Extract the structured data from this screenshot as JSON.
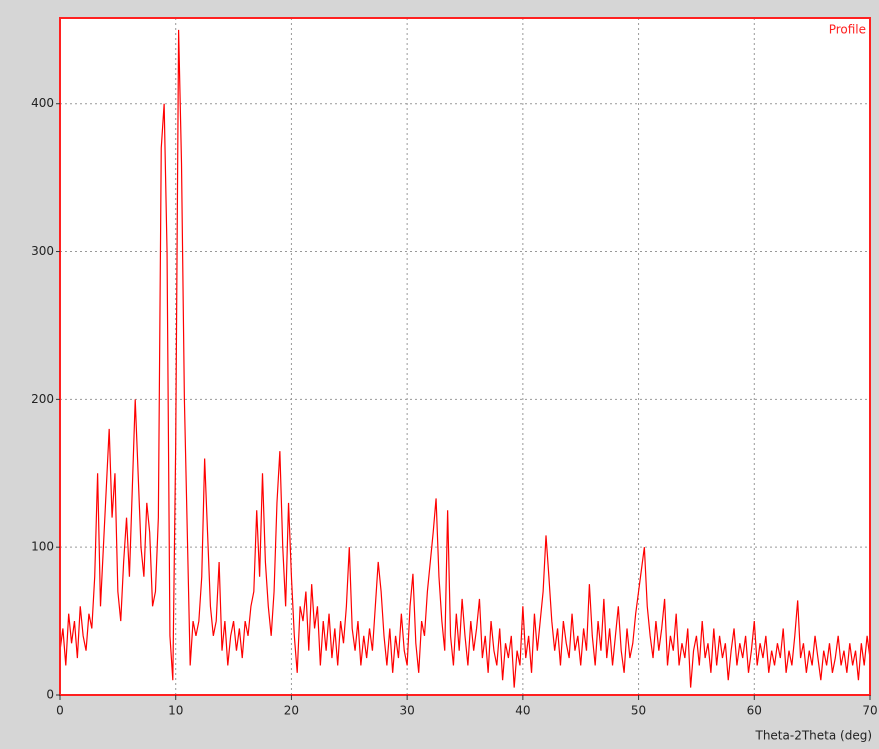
{
  "chart_data": {
    "type": "line",
    "legend_label": "Profile",
    "x_label": "Theta-2Theta (deg)",
    "xlim": [
      0,
      70
    ],
    "ylim": [
      0,
      458
    ],
    "xticks": [
      0,
      10,
      20,
      30,
      40,
      50,
      60,
      70
    ],
    "yticks": [
      0,
      100,
      200,
      300,
      400
    ],
    "grid": true,
    "series": [
      {
        "name": "Profile",
        "color": "#ff0000",
        "x": [
          0,
          0.25,
          0.5,
          0.75,
          1,
          1.25,
          1.5,
          1.75,
          2,
          2.25,
          2.5,
          2.75,
          3,
          3.25,
          3.5,
          3.75,
          4,
          4.25,
          4.5,
          4.75,
          5,
          5.25,
          5.5,
          5.75,
          6,
          6.25,
          6.5,
          6.75,
          7,
          7.25,
          7.5,
          7.75,
          8,
          8.25,
          8.5,
          8.75,
          9,
          9.25,
          9.5,
          9.75,
          10,
          10.25,
          10.5,
          10.75,
          11,
          11.25,
          11.5,
          11.75,
          12,
          12.25,
          12.5,
          12.75,
          13,
          13.25,
          13.5,
          13.75,
          14,
          14.25,
          14.5,
          14.75,
          15,
          15.25,
          15.5,
          15.75,
          16,
          16.25,
          16.5,
          16.75,
          17,
          17.25,
          17.5,
          17.75,
          18,
          18.25,
          18.5,
          18.75,
          19,
          19.25,
          19.5,
          19.75,
          20,
          20.25,
          20.5,
          20.75,
          21,
          21.25,
          21.5,
          21.75,
          22,
          22.25,
          22.5,
          22.75,
          23,
          23.25,
          23.5,
          23.75,
          24,
          24.25,
          24.5,
          24.75,
          25,
          25.25,
          25.5,
          25.75,
          26,
          26.25,
          26.5,
          26.75,
          27,
          27.25,
          27.5,
          27.75,
          28,
          28.25,
          28.5,
          28.75,
          29,
          29.25,
          29.5,
          29.75,
          30,
          30.25,
          30.5,
          30.75,
          31,
          31.25,
          31.5,
          31.75,
          32,
          32.25,
          32.5,
          32.75,
          33,
          33.25,
          33.5,
          33.75,
          34,
          34.25,
          34.5,
          34.75,
          35,
          35.25,
          35.5,
          35.75,
          36,
          36.25,
          36.5,
          36.75,
          37,
          37.25,
          37.5,
          37.75,
          38,
          38.25,
          38.5,
          38.75,
          39,
          39.25,
          39.5,
          39.75,
          40,
          40.25,
          40.5,
          40.75,
          41,
          41.25,
          41.5,
          41.75,
          42,
          42.25,
          42.5,
          42.75,
          43,
          43.25,
          43.5,
          43.75,
          44,
          44.25,
          44.5,
          44.75,
          45,
          45.25,
          45.5,
          45.75,
          46,
          46.25,
          46.5,
          46.75,
          47,
          47.25,
          47.5,
          47.75,
          48,
          48.25,
          48.5,
          48.75,
          49,
          49.25,
          49.5,
          49.75,
          50,
          50.25,
          50.5,
          50.75,
          51,
          51.25,
          51.5,
          51.75,
          52,
          52.25,
          52.5,
          52.75,
          53,
          53.25,
          53.5,
          53.75,
          54,
          54.25,
          54.5,
          54.75,
          55,
          55.25,
          55.5,
          55.75,
          56,
          56.25,
          56.5,
          56.75,
          57,
          57.25,
          57.5,
          57.75,
          58,
          58.25,
          58.5,
          58.75,
          59,
          59.25,
          59.5,
          59.75,
          60,
          60.25,
          60.5,
          60.75,
          61,
          61.25,
          61.5,
          61.75,
          62,
          62.25,
          62.5,
          62.75,
          63,
          63.25,
          63.5,
          63.75,
          64,
          64.25,
          64.5,
          64.75,
          65,
          65.25,
          65.5,
          65.75,
          66,
          66.25,
          66.5,
          66.75,
          67,
          67.25,
          67.5,
          67.75,
          68,
          68.25,
          68.5,
          68.75,
          69,
          69.25,
          69.5,
          69.75,
          70
        ],
        "values": [
          30,
          45,
          20,
          55,
          35,
          50,
          25,
          60,
          40,
          30,
          55,
          45,
          80,
          150,
          60,
          100,
          140,
          180,
          120,
          150,
          70,
          50,
          90,
          120,
          80,
          140,
          200,
          150,
          100,
          80,
          130,
          110,
          60,
          70,
          120,
          370,
          400,
          300,
          40,
          10,
          170,
          450,
          360,
          200,
          110,
          20,
          50,
          40,
          50,
          80,
          160,
          110,
          60,
          40,
          50,
          90,
          30,
          50,
          20,
          40,
          50,
          30,
          45,
          25,
          50,
          40,
          60,
          70,
          125,
          80,
          150,
          90,
          60,
          40,
          70,
          130,
          165,
          100,
          60,
          130,
          80,
          40,
          15,
          60,
          50,
          70,
          30,
          75,
          45,
          60,
          20,
          50,
          30,
          55,
          25,
          45,
          20,
          50,
          35,
          60,
          100,
          45,
          30,
          50,
          20,
          40,
          25,
          45,
          30,
          60,
          90,
          70,
          40,
          20,
          45,
          15,
          40,
          25,
          55,
          30,
          20,
          60,
          82,
          35,
          15,
          50,
          40,
          70,
          90,
          110,
          133,
          80,
          50,
          30,
          125,
          40,
          20,
          55,
          30,
          65,
          40,
          20,
          50,
          30,
          45,
          65,
          25,
          40,
          15,
          50,
          30,
          20,
          45,
          10,
          35,
          25,
          40,
          5,
          30,
          20,
          60,
          25,
          40,
          15,
          55,
          30,
          50,
          70,
          108,
          80,
          50,
          30,
          45,
          20,
          50,
          35,
          25,
          55,
          30,
          40,
          20,
          45,
          30,
          75,
          40,
          20,
          50,
          30,
          65,
          25,
          45,
          20,
          40,
          60,
          30,
          15,
          45,
          25,
          35,
          55,
          70,
          85,
          100,
          60,
          40,
          25,
          50,
          30,
          45,
          65,
          20,
          40,
          30,
          55,
          20,
          35,
          25,
          45,
          5,
          30,
          40,
          20,
          50,
          25,
          35,
          15,
          45,
          20,
          40,
          25,
          35,
          10,
          30,
          45,
          20,
          35,
          25,
          40,
          15,
          30,
          50,
          20,
          35,
          25,
          40,
          15,
          30,
          20,
          35,
          25,
          45,
          15,
          30,
          20,
          40,
          64,
          25,
          35,
          15,
          30,
          20,
          40,
          25,
          10,
          30,
          20,
          35,
          15,
          25,
          40,
          20,
          30,
          15,
          35,
          20,
          30,
          10,
          35,
          20,
          40,
          25
        ]
      }
    ]
  }
}
